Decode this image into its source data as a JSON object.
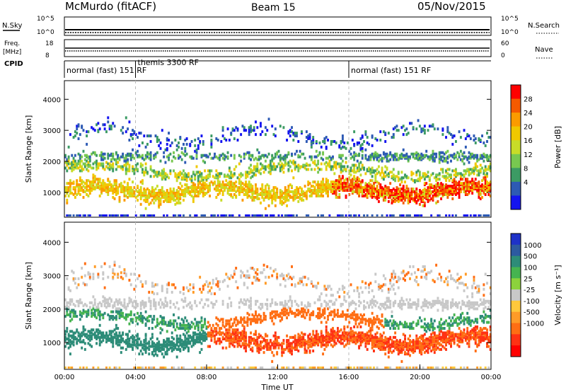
{
  "header": {
    "radar": "McMurdo (fitACF)",
    "beam": "Beam 15",
    "date": "05/Nov/2015"
  },
  "panels": {
    "nsky_label": "N.Sky",
    "nsearch_label": "N.Search",
    "nsky_ticks": [
      "10^5",
      "10^0"
    ],
    "nsearch_ticks": [
      "10^5",
      "10^0"
    ],
    "freq_label": "Freq.",
    "freq_unit": "[MHz]",
    "freq_ticks": [
      "18",
      "8"
    ],
    "nave_label": "Nave",
    "nave_ticks": [
      "60",
      "0"
    ],
    "cpid_label": "CPID",
    "cpid_segments": [
      {
        "label": "normal (fast) 151 RF",
        "start_hour": 0
      },
      {
        "label": "themis 3300 RF",
        "start_hour": 4
      },
      {
        "label": "normal (fast) 151 RF",
        "start_hour": 16
      }
    ]
  },
  "chart_data": [
    {
      "type": "heatmap",
      "name": "power",
      "ylabel": "Slant Range [km]",
      "ylim": [
        200,
        4600
      ],
      "yticks": [
        1000,
        2000,
        3000,
        4000
      ],
      "xlim": [
        0,
        24
      ],
      "colorbar_label": "Power [dB]",
      "colorbar_ticks": [
        "28",
        "24",
        "20",
        "16",
        "12",
        "8",
        "4"
      ],
      "colorbar_colors": [
        "#ff0000",
        "#f55a00",
        "#fb9b00",
        "#f0c800",
        "#c8dc28",
        "#78c850",
        "#3c9b64",
        "#2d5ab4",
        "#1414f0"
      ]
    },
    {
      "type": "heatmap",
      "name": "velocity",
      "ylabel": "Slant Range [km]",
      "ylim": [
        200,
        4600
      ],
      "yticks": [
        1000,
        2000,
        3000,
        4000
      ],
      "xlim": [
        0,
        24
      ],
      "xticks": [
        "00:00",
        "04:00",
        "08:00",
        "12:00",
        "16:00",
        "20:00",
        "00:00"
      ],
      "xlabel": "Time UT",
      "colorbar_label": "Velocity [m s⁻¹]",
      "colorbar_ticks": [
        "1000",
        "500",
        "100",
        "25",
        "-25",
        "-100",
        "-500",
        "-1000"
      ],
      "colorbar_colors": [
        "#1e32c8",
        "#2d5aa0",
        "#2d8c78",
        "#46b450",
        "#8cd23c",
        "#c8c8c8",
        "#ffc83c",
        "#ff9b28",
        "#ff6e14",
        "#ff3214",
        "#ff0000"
      ]
    }
  ]
}
